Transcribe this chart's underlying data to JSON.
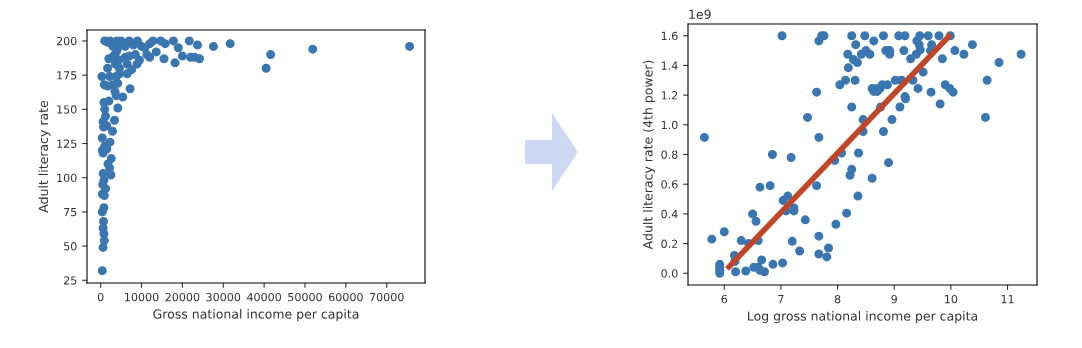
{
  "chart_data": [
    {
      "type": "scatter",
      "xlabel": "Gross national income per capita",
      "ylabel": "Adult literacy rate",
      "xlim": [
        -3340,
        79370
      ],
      "ylim": [
        23,
        208
      ],
      "xticks": [
        0,
        10000,
        20000,
        30000,
        40000,
        50000,
        60000,
        70000
      ],
      "yticks": [
        25,
        50,
        75,
        100,
        125,
        150,
        175,
        200
      ],
      "grid": false,
      "legend": false,
      "series": [
        {
          "color": "#3a76b0",
          "marker": "circle",
          "x": [
            400,
            600,
            900,
            800,
            600,
            700,
            400,
            800,
            900,
            400,
            1200,
            500,
            800,
            600,
            600,
            400,
            1000,
            400,
            700,
            600,
            1200,
            1000,
            800,
            900,
            300,
            2500,
            2200,
            1800,
            2600,
            1500,
            2300,
            2900,
            1500,
            3400,
            2000,
            4200,
            5400,
            3800,
            3500,
            7200,
            3000,
            4200,
            1700,
            2200,
            3800,
            4600,
            6500,
            1700,
            4600,
            7600,
            3600,
            6500,
            8900,
            9500,
            2000,
            15500,
            18200,
            20000,
            22000,
            23000,
            24200,
            40500,
            41600,
            51900,
            75600,
            27600,
            31700,
            23700,
            21700,
            17800,
            19000,
            15800,
            14700,
            12800,
            13600,
            11300,
            12000,
            10000,
            9000,
            7000,
            5000,
            4000,
            2300,
            1000,
            1800,
            3000,
            4000,
            3500,
            6000,
            7000,
            8500,
            10800,
            12000,
            5000,
            6000,
            8000,
            4500,
            3200
          ],
          "values": [
            32,
            49,
            54,
            59,
            63,
            68,
            75,
            78,
            87,
            88,
            92,
            95,
            98,
            103,
            118,
            120,
            123,
            129,
            137,
            141,
            145,
            150,
            155,
            168,
            174,
            102,
            107,
            110,
            114,
            121,
            126,
            134,
            138,
            142,
            156,
            151,
            159,
            160,
            163,
            165,
            168,
            169,
            167,
            174,
            174,
            176,
            176,
            180,
            180,
            179,
            183,
            183,
            183,
            186,
            187,
            187,
            184,
            189,
            188,
            188,
            187,
            180,
            190,
            194,
            196,
            196,
            198,
            197,
            200,
            200,
            195,
            198,
            200,
            200,
            192,
            190,
            188,
            196,
            200,
            200,
            200,
            200,
            200,
            200,
            199,
            196,
            193,
            190,
            188,
            189,
            190,
            195,
            198,
            197,
            196,
            197,
            186,
            189
          ]
        }
      ]
    },
    {
      "type": "scatter",
      "xlabel": "Log gross national income per capita",
      "ylabel": "Adult literacy rate (4th power)",
      "annotations": [
        "1e9"
      ],
      "xlim": [
        5.36,
        11.52
      ],
      "ylim": [
        -0.079,
        1.679
      ],
      "xticks": [
        6,
        7,
        8,
        9,
        10,
        11
      ],
      "yticks": [
        {
          "value": 0,
          "label": "0.0"
        },
        {
          "value": 0.2,
          "label": "0.2"
        },
        {
          "value": 0.4,
          "label": "0.4"
        },
        {
          "value": 0.6,
          "label": "0.6"
        },
        {
          "value": 0.8,
          "label": "0.8"
        },
        {
          "value": 1.0,
          "label": "1.0"
        },
        {
          "value": 1.2,
          "label": "1.2"
        },
        {
          "value": 1.4,
          "label": "1.4"
        },
        {
          "value": 1.6,
          "label": "1.6"
        }
      ],
      "grid": false,
      "legend": false,
      "series": [
        {
          "type": "scatter",
          "color": "#3a76b0",
          "marker": "circle",
          "x": [
            5.65,
            5.78,
            6.0,
            5.92,
            5.92,
            5.92,
            5.92,
            6.18,
            6.19,
            6.2,
            6.3,
            6.38,
            6.43,
            6.5,
            6.56,
            6.6,
            6.52,
            6.6,
            6.63,
            6.66,
            6.71,
            6.63,
            6.81,
            6.85,
            6.86,
            7.02,
            7.03,
            7.04,
            7.12,
            7.09,
            7.18,
            7.2,
            7.23,
            7.23,
            7.33,
            7.43,
            7.47,
            7.63,
            7.63,
            7.67,
            7.67,
            7.67,
            7.67,
            7.72,
            7.76,
            7.81,
            7.84,
            7.95,
            7.97,
            8.04,
            8.07,
            8.14,
            8.16,
            8.18,
            8.19,
            8.22,
            8.25,
            8.25,
            8.25,
            8.28,
            8.31,
            8.32,
            8.35,
            8.36,
            8.37,
            8.42,
            8.45,
            8.45,
            8.48,
            8.5,
            8.57,
            8.61,
            8.61,
            8.64,
            8.64,
            8.7,
            8.7,
            8.75,
            8.76,
            8.81,
            8.81,
            8.79,
            8.85,
            8.88,
            8.9,
            8.92,
            8.92,
            8.96,
            9.02,
            9.08,
            9.1,
            9.13,
            9.17,
            9.19,
            9.19,
            9.2,
            9.29,
            9.33,
            9.39,
            9.42,
            9.4,
            9.45,
            9.44,
            9.46,
            9.51,
            9.6,
            9.64,
            9.66,
            9.65,
            9.79,
            9.81,
            9.85,
            9.9,
            9.98,
            9.99,
            10.04,
            10.07,
            10.23,
            10.38,
            10.61,
            10.64,
            10.85,
            11.24
          ],
          "values": [
            0.915,
            0.23,
            0.28,
            0.06,
            0.04,
            0.02,
            0.0,
            0.12,
            0.08,
            0.01,
            0.22,
            0.015,
            0.2,
            0.4,
            0.35,
            0.22,
            0.04,
            0.04,
            0.02,
            0.09,
            0.01,
            0.58,
            0.59,
            0.8,
            0.06,
            1.6,
            0.07,
            0.49,
            0.52,
            0.42,
            0.78,
            0.215,
            0.44,
            0.42,
            0.15,
            0.36,
            1.05,
            1.22,
            0.59,
            0.915,
            0.25,
            0.13,
            1.565,
            1.6,
            1.6,
            0.11,
            0.17,
            0.76,
            0.33,
            1.27,
            0.81,
            1.3,
            0.405,
            1.475,
            1.385,
            0.66,
            0.7,
            1.6,
            1.12,
            1.44,
            1.3,
            1.54,
            1.42,
            0.52,
            0.81,
            1.475,
            1.035,
            0.955,
            1.6,
            1.5,
            1.475,
            1.245,
            0.64,
            1.565,
            1.225,
            1.245,
            1.225,
            1.245,
            1.12,
            1.6,
            0.955,
            1.27,
            1.5,
            1.27,
            0.745,
            1.5,
            1.475,
            1.035,
            1.3,
            1.6,
            1.12,
            1.3,
            1.5,
            1.6,
            1.19,
            1.175,
            1.445,
            1.3,
            1.475,
            1.245,
            1.565,
            1.6,
            1.54,
            1.505,
            1.355,
            1.6,
            1.5,
            1.54,
            1.22,
            1.6,
            1.14,
            1.445,
            1.27,
            1.245,
            1.6,
            1.22,
            1.5,
            1.475,
            1.54,
            1.05,
            1.3,
            1.42,
            1.475
          ]
        },
        {
          "type": "line",
          "color": "#c0462a",
          "marker": "none",
          "x": [
            6.05,
            10.0
          ],
          "values": [
            0.03,
            1.61
          ]
        }
      ]
    }
  ]
}
